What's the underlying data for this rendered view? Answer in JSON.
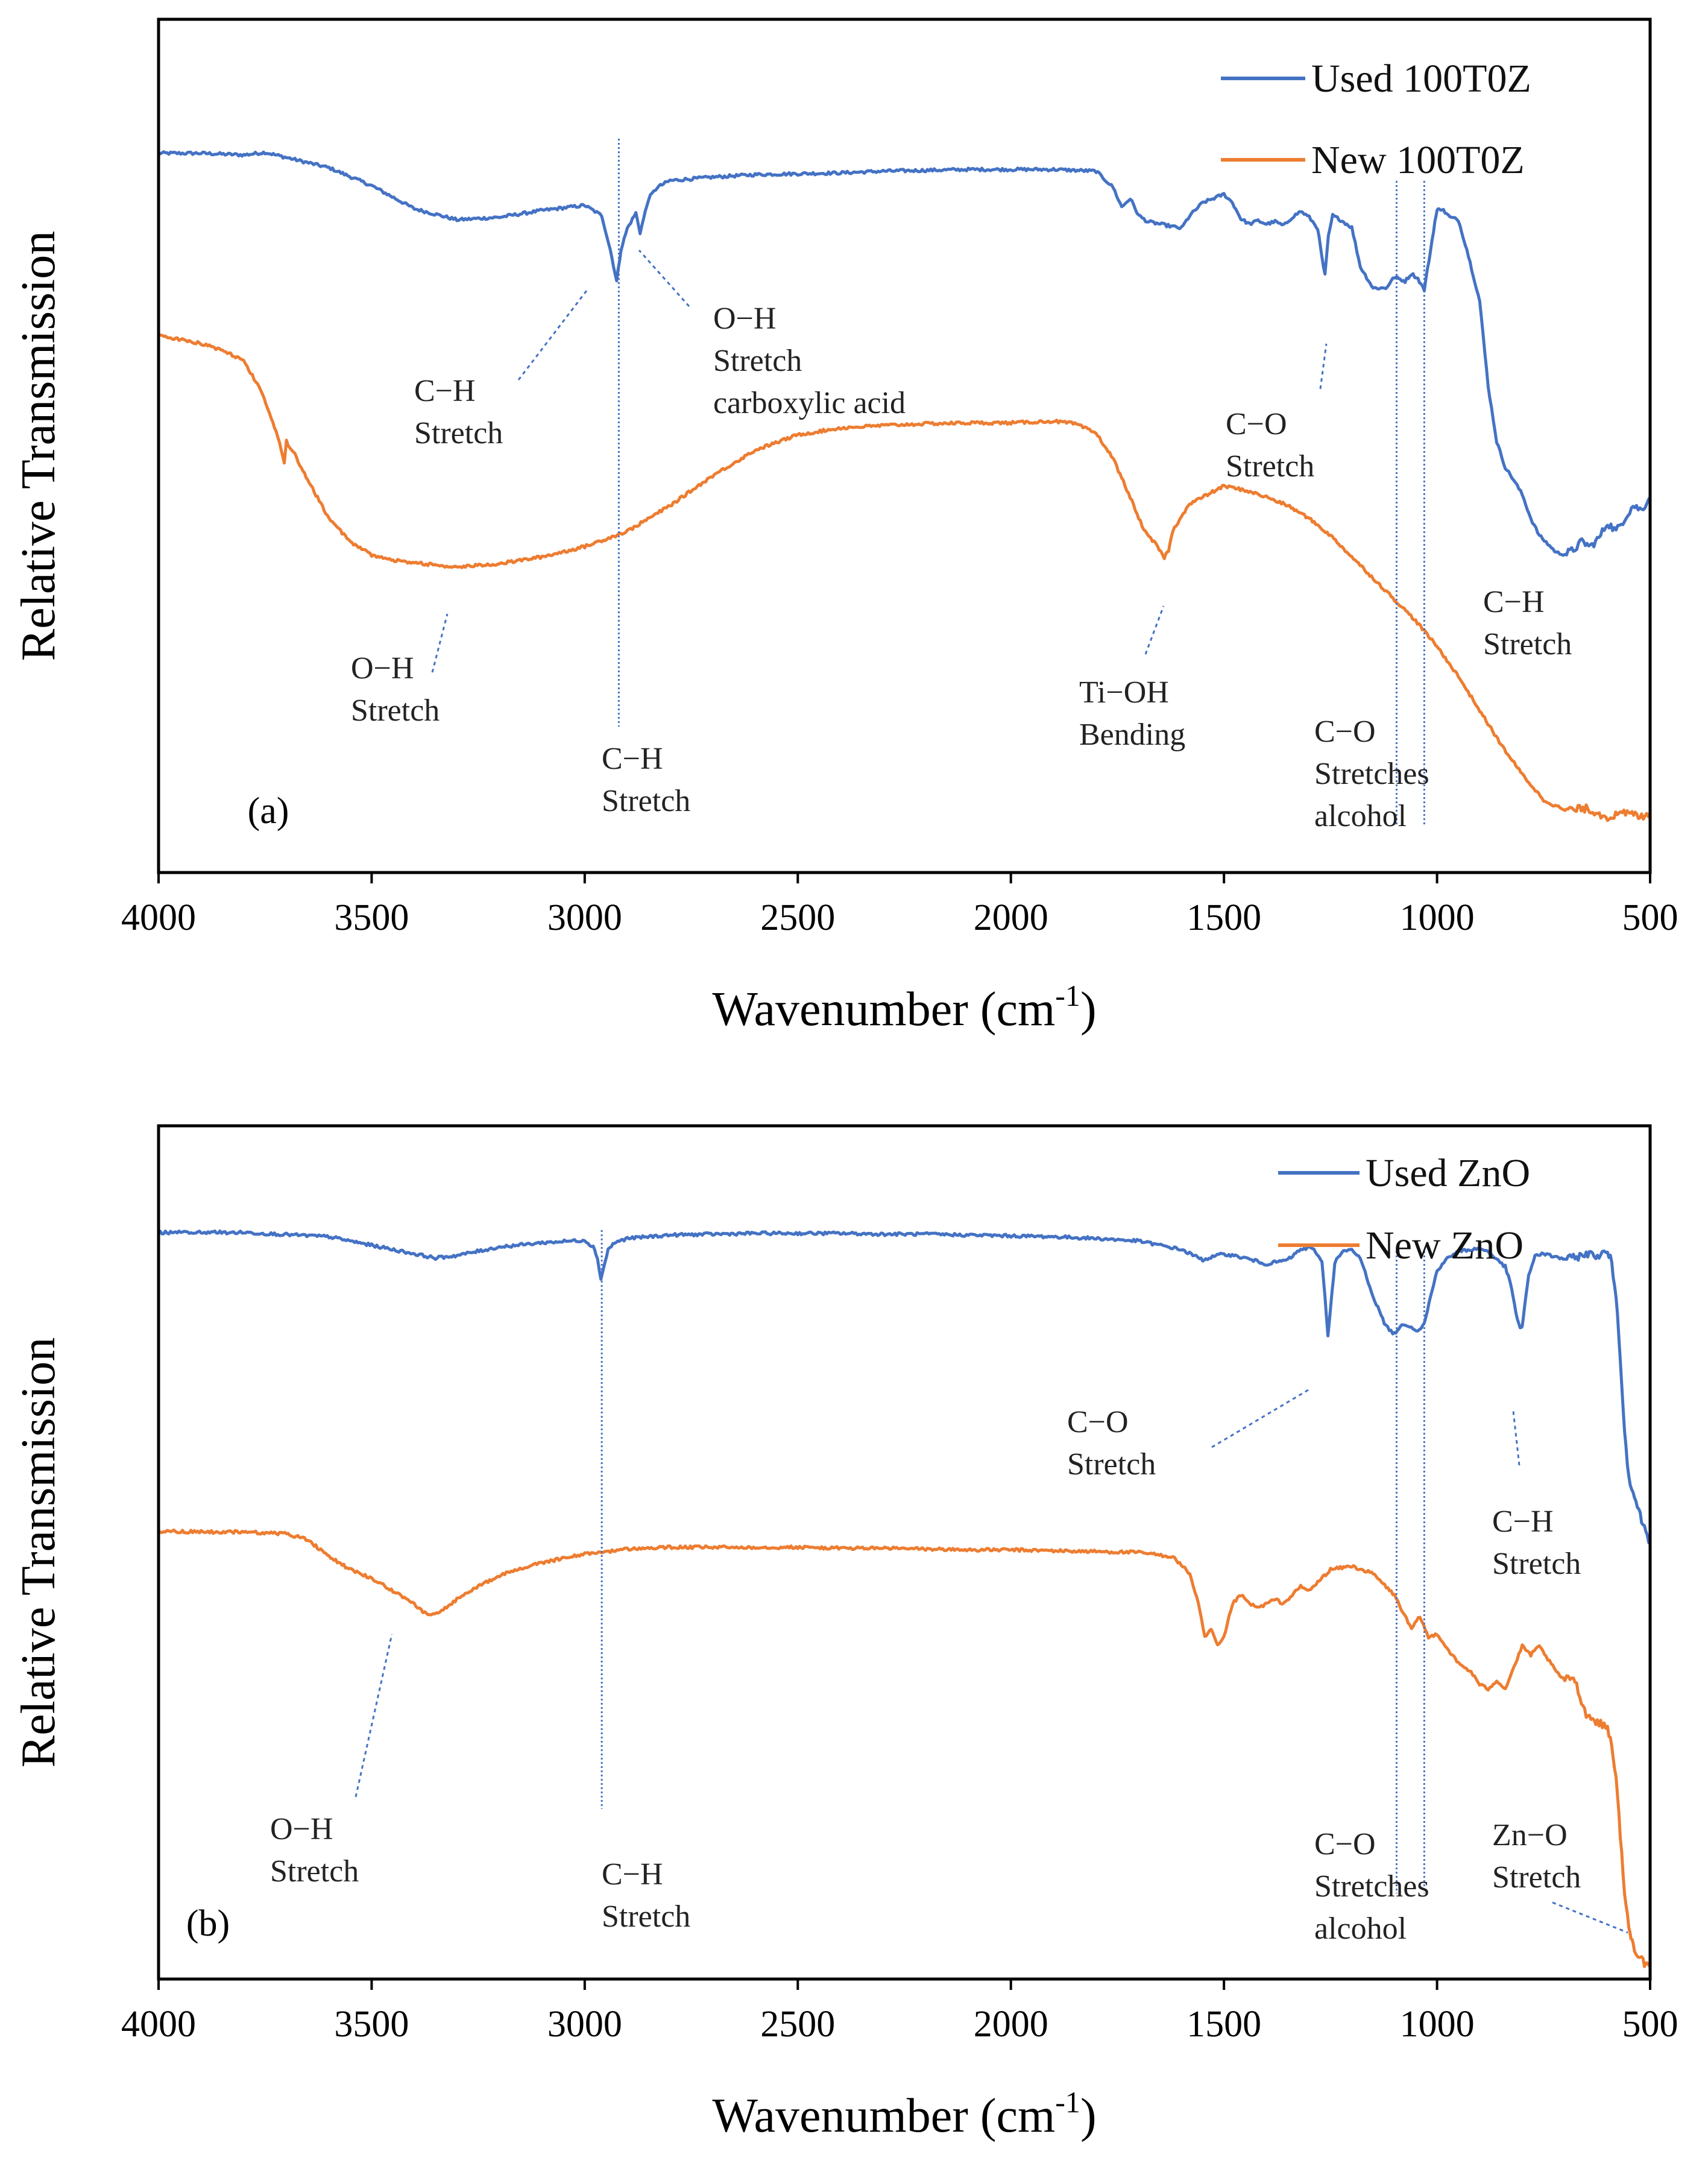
{
  "figure": {
    "colors": {
      "blue": "#4472C4",
      "orange": "#ED7D31",
      "axis": "#000000",
      "annotation": "#4472C4"
    }
  },
  "chart_data": [
    {
      "type": "line",
      "panel_label": "(a)",
      "xlabel": "Wavenumber (cm",
      "xlabel_sup": "-1",
      "xlabel_close": ")",
      "ylabel": "Relative Transmission",
      "xlim": [
        4000,
        500
      ],
      "ylim": [
        0,
        100
      ],
      "y_ticks_shown": false,
      "x_ticks": [
        4000,
        3500,
        3000,
        2500,
        2000,
        1500,
        1000,
        500
      ],
      "legend": {
        "position": "top-right",
        "entries": [
          "Used 100T0Z",
          "New 100T0Z"
        ]
      },
      "series": [
        {
          "name": "Used 100T0Z",
          "color": "#4472C4",
          "x": [
            4000,
            3900,
            3800,
            3750,
            3700,
            3600,
            3500,
            3400,
            3300,
            3200,
            3100,
            3000,
            2960,
            2940,
            2925,
            2915,
            2900,
            2880,
            2870,
            2850,
            2830,
            2800,
            2700,
            2600,
            2500,
            2400,
            2300,
            2200,
            2100,
            2000,
            1900,
            1800,
            1760,
            1740,
            1720,
            1700,
            1680,
            1650,
            1600,
            1580,
            1550,
            1500,
            1480,
            1460,
            1440,
            1420,
            1400,
            1380,
            1360,
            1340,
            1320,
            1300,
            1280,
            1270,
            1263,
            1255,
            1245,
            1230,
            1200,
            1180,
            1150,
            1120,
            1100,
            1090,
            1075,
            1060,
            1045,
            1030,
            1015,
            1005,
            1000,
            995,
            985,
            970,
            950,
            930,
            900,
            880,
            860,
            840,
            820,
            800,
            780,
            760,
            740,
            720,
            700,
            680,
            660,
            640,
            620,
            600,
            580,
            560,
            540,
            520,
            500
          ],
          "y": [
            84.3,
            84.3,
            84.1,
            84.4,
            83.8,
            82.6,
            80.5,
            77.8,
            76.5,
            76.8,
            77.6,
            78.2,
            77.0,
            73.0,
            69.3,
            73.0,
            75.5,
            77.3,
            75.0,
            79.0,
            80.3,
            81.1,
            81.5,
            81.8,
            81.9,
            82.0,
            82.2,
            82.3,
            82.4,
            82.4,
            82.4,
            82.2,
            80.3,
            78.0,
            79.0,
            77.0,
            76.3,
            76.0,
            75.5,
            77.0,
            78.5,
            79.5,
            78.5,
            76.6,
            76.0,
            76.4,
            76.0,
            76.3,
            75.8,
            76.8,
            77.5,
            76.8,
            75.5,
            72.0,
            70.0,
            74.5,
            77.0,
            76.6,
            75.6,
            71.0,
            68.5,
            68.5,
            69.8,
            69.6,
            69.3,
            70.2,
            69.6,
            68.3,
            73.0,
            76.3,
            77.5,
            77.9,
            77.6,
            76.8,
            76.5,
            73.0,
            67.0,
            57.0,
            50.5,
            47.5,
            46.0,
            44.3,
            41.5,
            39.5,
            38.5,
            37.5,
            37.3,
            37.8,
            38.8,
            38.2,
            39.2,
            41.0,
            40.0,
            41.5,
            43.0,
            42.5,
            44.0
          ]
        },
        {
          "name": "New 100T0Z",
          "color": "#ED7D31",
          "x": [
            4000,
            3900,
            3850,
            3800,
            3760,
            3720,
            3705,
            3700,
            3680,
            3650,
            3600,
            3550,
            3500,
            3450,
            3400,
            3300,
            3200,
            3100,
            3000,
            2900,
            2800,
            2700,
            2600,
            2500,
            2400,
            2300,
            2200,
            2100,
            2000,
            1900,
            1850,
            1800,
            1760,
            1720,
            1700,
            1680,
            1660,
            1640,
            1630,
            1620,
            1600,
            1580,
            1550,
            1500,
            1450,
            1400,
            1350,
            1300,
            1250,
            1200,
            1150,
            1100,
            1050,
            1000,
            950,
            900,
            850,
            800,
            750,
            700,
            650,
            600,
            550,
            520,
            500
          ],
          "y": [
            63.0,
            62.0,
            61.2,
            60.0,
            56.5,
            51.0,
            48.0,
            50.5,
            49.0,
            46.0,
            41.5,
            38.8,
            37.2,
            36.6,
            36.3,
            35.8,
            36.2,
            37.0,
            38.2,
            40.0,
            43.0,
            46.5,
            49.5,
            51.3,
            52.1,
            52.4,
            52.6,
            52.7,
            52.7,
            52.9,
            52.6,
            51.5,
            48.5,
            44.0,
            41.5,
            39.5,
            38.5,
            36.9,
            37.8,
            40.0,
            41.8,
            43.2,
            44.0,
            45.3,
            44.8,
            44.0,
            43.0,
            41.5,
            39.5,
            37.0,
            34.5,
            32.0,
            29.5,
            26.5,
            23.0,
            19.0,
            15.0,
            11.5,
            8.5,
            7.3,
            7.5,
            6.5,
            7.0,
            6.5,
            7.0
          ]
        }
      ],
      "vlines": [
        2920,
        1095,
        1030
      ],
      "annotations": [
        {
          "lines": [
            "C−H",
            "Stretch"
          ]
        },
        {
          "lines": [
            "O−H",
            "Stretch",
            "carboxylic acid"
          ]
        },
        {
          "lines": [
            "C−O",
            "Stretch"
          ]
        },
        {
          "lines": [
            "C−H",
            "Stretch"
          ]
        },
        {
          "lines": [
            "O−H",
            "Stretch"
          ]
        },
        {
          "lines": [
            "C−H",
            "Stretch"
          ]
        },
        {
          "lines": [
            "Ti−OH",
            "Bending"
          ]
        },
        {
          "lines": [
            "C−O",
            "Stretches",
            "alcohol"
          ]
        }
      ]
    },
    {
      "type": "line",
      "panel_label": "(b)",
      "xlabel": "Wavenumber (cm",
      "xlabel_sup": "-1",
      "xlabel_close": ")",
      "ylabel": "Relative Transmission",
      "xlim": [
        4000,
        500
      ],
      "ylim": [
        0,
        100
      ],
      "y_ticks_shown": false,
      "x_ticks": [
        4000,
        3500,
        3000,
        2500,
        2000,
        1500,
        1000,
        500
      ],
      "legend": {
        "position": "top-right",
        "entries": [
          "Used ZnO",
          "New ZnO"
        ]
      },
      "series": [
        {
          "name": "Used ZnO",
          "color": "#4472C4",
          "x": [
            4000,
            3800,
            3600,
            3500,
            3400,
            3350,
            3300,
            3200,
            3100,
            3000,
            2980,
            2970,
            2962,
            2955,
            2945,
            2930,
            2900,
            2800,
            2700,
            2600,
            2500,
            2400,
            2300,
            2200,
            2100,
            2000,
            1900,
            1800,
            1700,
            1600,
            1550,
            1500,
            1450,
            1400,
            1350,
            1320,
            1300,
            1285,
            1270,
            1263,
            1256,
            1250,
            1240,
            1220,
            1200,
            1180,
            1150,
            1120,
            1100,
            1090,
            1075,
            1060,
            1045,
            1030,
            1015,
            1000,
            980,
            950,
            920,
            900,
            880,
            860,
            840,
            825,
            815,
            805,
            800,
            795,
            785,
            770,
            750,
            720,
            700,
            680,
            650,
            620,
            600,
            590,
            580,
            570,
            560,
            550,
            540,
            530,
            520,
            510,
            500
          ],
          "y": [
            87.5,
            87.5,
            87.0,
            86.0,
            85.0,
            84.5,
            84.8,
            85.8,
            86.3,
            86.6,
            85.8,
            84.5,
            82.0,
            83.5,
            85.5,
            86.3,
            86.8,
            87.2,
            87.3,
            87.4,
            87.4,
            87.4,
            87.3,
            87.3,
            87.2,
            87.1,
            87.0,
            86.8,
            86.5,
            85.5,
            84.3,
            85.0,
            84.5,
            83.8,
            84.3,
            85.5,
            85.7,
            85.3,
            84.0,
            80.0,
            75.5,
            78.5,
            84.0,
            85.3,
            85.4,
            84.5,
            80.0,
            76.5,
            75.6,
            76.3,
            76.8,
            76.4,
            76.0,
            76.8,
            80.0,
            83.0,
            84.3,
            85.3,
            85.5,
            85.6,
            85.3,
            84.3,
            83.5,
            81.0,
            78.0,
            76.3,
            76.5,
            78.5,
            82.5,
            84.8,
            85.0,
            84.6,
            84.4,
            84.5,
            85.0,
            84.8,
            85.2,
            84.0,
            80.0,
            73.0,
            64.0,
            59.0,
            57.0,
            55.5,
            53.8,
            52.5,
            51.0
          ]
        },
        {
          "name": "New ZnO",
          "color": "#ED7D31",
          "x": [
            4000,
            3900,
            3800,
            3700,
            3650,
            3600,
            3550,
            3500,
            3450,
            3400,
            3380,
            3360,
            3340,
            3300,
            3250,
            3200,
            3100,
            3000,
            2900,
            2800,
            2700,
            2600,
            2500,
            2400,
            2300,
            2200,
            2100,
            2000,
            1900,
            1800,
            1700,
            1620,
            1580,
            1560,
            1545,
            1530,
            1515,
            1500,
            1480,
            1460,
            1440,
            1420,
            1400,
            1380,
            1360,
            1340,
            1320,
            1300,
            1280,
            1250,
            1200,
            1150,
            1100,
            1080,
            1060,
            1040,
            1020,
            1000,
            980,
            950,
            920,
            900,
            880,
            860,
            840,
            820,
            800,
            780,
            760,
            740,
            720,
            700,
            680,
            650,
            620,
            600,
            590,
            580,
            570,
            560,
            550,
            545,
            540,
            530,
            520,
            510,
            500
          ],
          "y": [
            52.5,
            52.4,
            52.4,
            52.2,
            51.5,
            49.5,
            48.0,
            47.0,
            45.5,
            44.0,
            43.0,
            42.6,
            43.0,
            44.5,
            46.0,
            47.3,
            48.8,
            49.8,
            50.4,
            50.6,
            50.6,
            50.6,
            50.6,
            50.5,
            50.5,
            50.4,
            50.3,
            50.3,
            50.2,
            50.1,
            50.0,
            49.5,
            47.5,
            44.0,
            40.0,
            41.0,
            39.0,
            40.0,
            44.0,
            45.0,
            44.0,
            43.5,
            44.0,
            44.5,
            44.0,
            45.0,
            46.0,
            45.5,
            46.5,
            48.0,
            48.4,
            47.5,
            45.0,
            43.0,
            41.0,
            42.5,
            40.0,
            40.5,
            39.0,
            37.0,
            36.0,
            34.5,
            34.0,
            35.0,
            34.0,
            36.5,
            39.0,
            38.0,
            39.0,
            37.5,
            36.0,
            35.0,
            35.5,
            31.0,
            30.0,
            29.5,
            27.5,
            23.5,
            17.0,
            10.0,
            6.0,
            5.0,
            4.0,
            3.0,
            2.5,
            1.5,
            1.5
          ]
        }
      ],
      "vlines": [
        2960,
        1095,
        1030
      ],
      "annotations": [
        {
          "lines": [
            "C−O",
            "Stretch"
          ]
        },
        {
          "lines": [
            "C−H",
            "Stretch"
          ]
        },
        {
          "lines": [
            "O−H",
            "Stretch"
          ]
        },
        {
          "lines": [
            "C−H",
            "Stretch"
          ]
        },
        {
          "lines": [
            "C−O",
            "Stretches",
            "alcohol"
          ]
        },
        {
          "lines": [
            "Zn−O",
            "Stretch"
          ]
        }
      ]
    }
  ]
}
